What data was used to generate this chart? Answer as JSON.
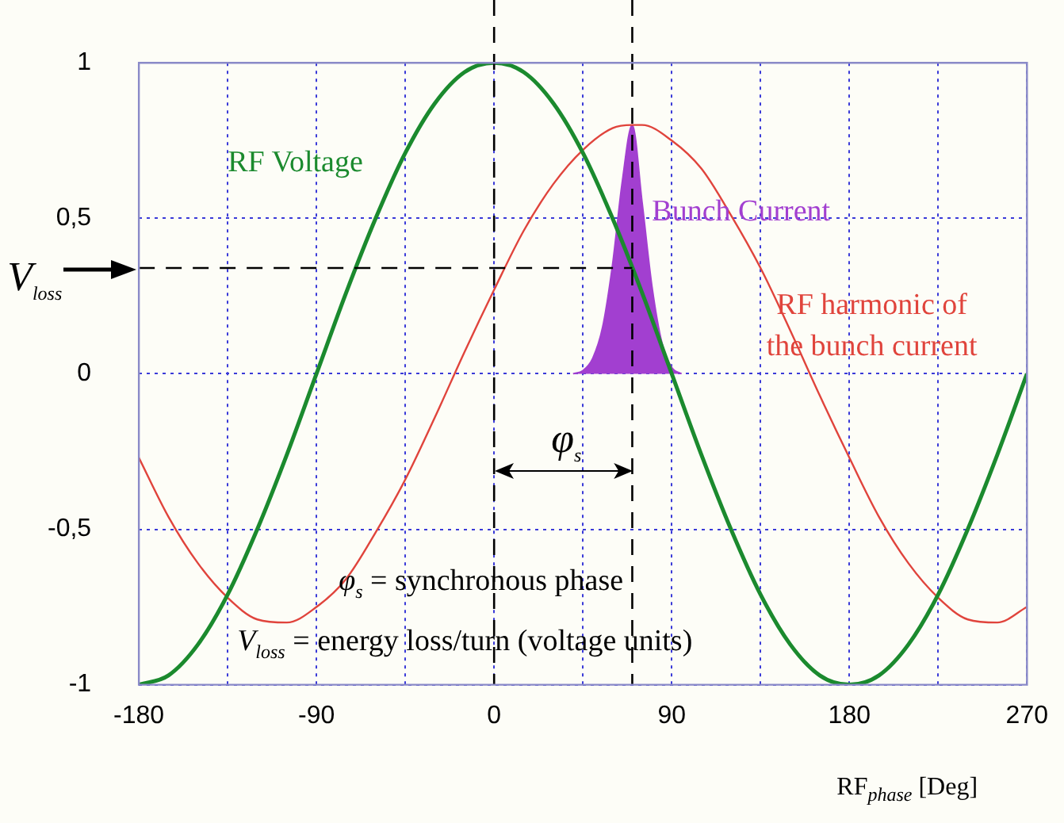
{
  "chart_data": {
    "type": "line",
    "xlabel": "RF$_{phase}$ [Deg]",
    "xlim": [
      -180,
      270
    ],
    "xticks": [
      -180,
      {
        "value": -135,
        "label": null
      },
      -90,
      {
        "value": -45,
        "label": null
      },
      0,
      {
        "value": 45,
        "label": null
      },
      90,
      {
        "value": 135,
        "label": null
      },
      180,
      {
        "value": 225,
        "label": null
      },
      270
    ],
    "ylim": [
      -1,
      1
    ],
    "yticks": [
      -1,
      {
        "value": -0.5,
        "label": "-0,5"
      },
      0,
      {
        "value": 0.5,
        "label": "0,5"
      },
      1
    ],
    "grid": true,
    "legend": false,
    "marker": "none",
    "series": [
      {
        "name": "RF Voltage",
        "color": "#1b8a2e",
        "x": [
          -180,
          -165,
          -150,
          -135,
          -120,
          -105,
          -90,
          -75,
          -60,
          -45,
          -30,
          -15,
          0,
          15,
          30,
          45,
          60,
          75,
          90,
          105,
          120,
          135,
          150,
          165,
          180,
          195,
          210,
          225,
          240,
          255,
          270
        ],
        "values": [
          -1,
          -0.97,
          -0.87,
          -0.71,
          -0.5,
          -0.26,
          0,
          0.26,
          0.5,
          0.71,
          0.87,
          0.97,
          1,
          0.97,
          0.87,
          0.71,
          0.5,
          0.26,
          0,
          -0.26,
          -0.5,
          -0.71,
          -0.87,
          -0.97,
          -1,
          -0.97,
          -0.87,
          -0.71,
          -0.5,
          -0.26,
          0
        ]
      },
      {
        "name": "RF harmonic of the bunch current",
        "color": "#e0443c",
        "x": [
          -180,
          -165,
          -150,
          -135,
          -120,
          -105,
          -90,
          -75,
          -60,
          -45,
          -30,
          -15,
          0,
          15,
          30,
          45,
          60,
          70,
          75,
          90,
          105,
          120,
          135,
          150,
          165,
          180,
          195,
          210,
          225,
          240,
          255,
          270
        ],
        "values": [
          -0.27,
          -0.46,
          -0.61,
          -0.72,
          -0.79,
          -0.8,
          -0.75,
          -0.66,
          -0.51,
          -0.34,
          -0.14,
          0.07,
          0.27,
          0.46,
          0.61,
          0.72,
          0.79,
          0.8,
          0.8,
          0.75,
          0.66,
          0.51,
          0.34,
          0.14,
          -0.07,
          -0.27,
          -0.46,
          -0.61,
          -0.72,
          -0.79,
          -0.8,
          -0.75
        ]
      },
      {
        "name": "Bunch Current",
        "type": "area",
        "color": "#a23fd0",
        "x": [
          40,
          45,
          50,
          55,
          60,
          65,
          70,
          75,
          80,
          85,
          90,
          95
        ],
        "values": [
          0,
          0.01,
          0.05,
          0.15,
          0.35,
          0.62,
          0.8,
          0.55,
          0.28,
          0.1,
          0.02,
          0
        ]
      }
    ],
    "ref_lines": [
      {
        "axis": "x",
        "value": 0,
        "color": "#000000",
        "line_style": "dashed"
      },
      {
        "axis": "x",
        "value": 70,
        "label": "φ$_{s}$",
        "color": "#000000",
        "line_style": "dashed"
      },
      {
        "axis": "y",
        "value": 0.34,
        "label": "V$_{loss}$",
        "color": "#000000",
        "line_style": "dashed"
      }
    ],
    "annotations": [
      "φ$_{s}$ = synchronous phase",
      "V$_{loss}$ = energy loss/turn (voltage units)"
    ]
  }
}
